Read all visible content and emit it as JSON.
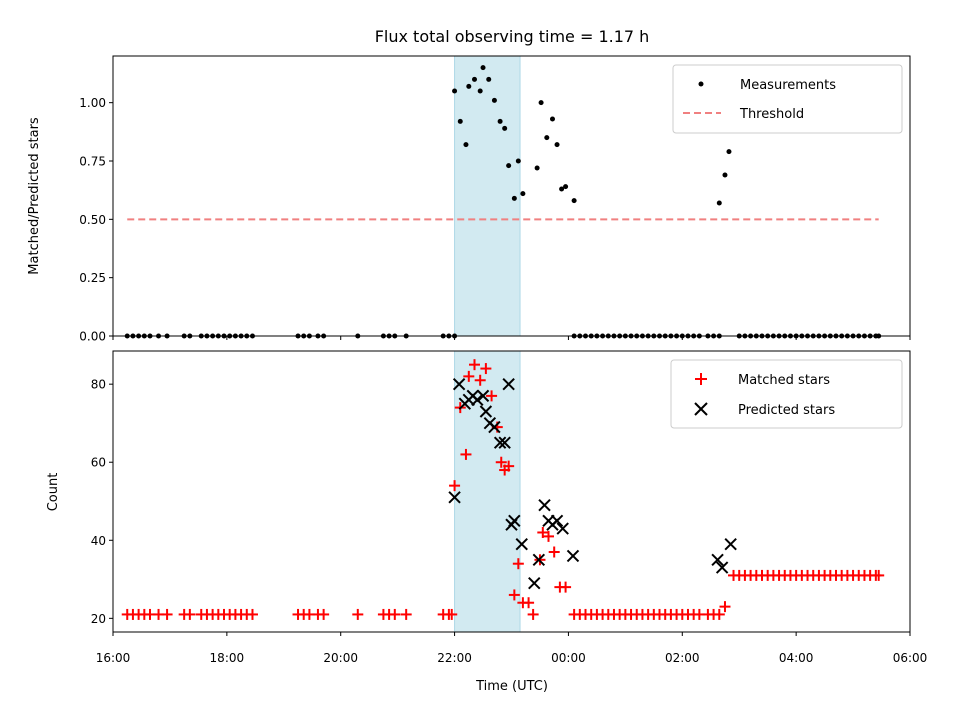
{
  "chart_data": [
    {
      "type": "scatter",
      "title": "Flux total observing time = 1.17 h",
      "xlabel": "",
      "ylabel": "Matched/Predicted stars",
      "xlim": [
        16.0,
        30.0
      ],
      "ylim": [
        0.0,
        1.2
      ],
      "yticks": [
        0.0,
        0.25,
        0.5,
        0.75,
        1.0
      ],
      "ytick_labels": [
        "0.00",
        "0.25",
        "0.50",
        "0.75",
        "1.00"
      ],
      "highlight_span": [
        22.0,
        23.15
      ],
      "threshold": {
        "name": "Threshold",
        "y": 0.5,
        "x_range": [
          16.25,
          29.45
        ],
        "color": "#f08080"
      },
      "series": [
        {
          "name": "Measurements",
          "color": "#000000",
          "points": [
            [
              16.25,
              0
            ],
            [
              16.35,
              0
            ],
            [
              16.45,
              0
            ],
            [
              16.55,
              0
            ],
            [
              16.65,
              0
            ],
            [
              16.8,
              0
            ],
            [
              16.95,
              0
            ],
            [
              17.25,
              0
            ],
            [
              17.35,
              0
            ],
            [
              17.55,
              0
            ],
            [
              17.65,
              0
            ],
            [
              17.75,
              0
            ],
            [
              17.85,
              0
            ],
            [
              17.95,
              0
            ],
            [
              18.05,
              0
            ],
            [
              18.15,
              0
            ],
            [
              18.25,
              0
            ],
            [
              18.35,
              0
            ],
            [
              18.45,
              0
            ],
            [
              19.25,
              0
            ],
            [
              19.35,
              0
            ],
            [
              19.45,
              0
            ],
            [
              19.6,
              0
            ],
            [
              19.7,
              0
            ],
            [
              20.3,
              0
            ],
            [
              20.75,
              0
            ],
            [
              20.85,
              0
            ],
            [
              20.95,
              0
            ],
            [
              21.15,
              0
            ],
            [
              21.8,
              0
            ],
            [
              21.9,
              0
            ],
            [
              22.0,
              0
            ],
            [
              22.0,
              1.05
            ],
            [
              22.1,
              0.92
            ],
            [
              22.2,
              0.82
            ],
            [
              22.25,
              1.07
            ],
            [
              22.35,
              1.1
            ],
            [
              22.45,
              1.05
            ],
            [
              22.5,
              1.15
            ],
            [
              22.6,
              1.1
            ],
            [
              22.7,
              1.01
            ],
            [
              22.8,
              0.92
            ],
            [
              22.88,
              0.89
            ],
            [
              22.95,
              0.73
            ],
            [
              23.05,
              0.59
            ],
            [
              23.12,
              0.75
            ],
            [
              23.2,
              0.61
            ],
            [
              23.45,
              0.72
            ],
            [
              23.52,
              1.0
            ],
            [
              23.62,
              0.85
            ],
            [
              23.72,
              0.93
            ],
            [
              23.8,
              0.82
            ],
            [
              23.88,
              0.63
            ],
            [
              23.95,
              0.64
            ],
            [
              24.1,
              0.58
            ],
            [
              24.1,
              0
            ],
            [
              24.2,
              0
            ],
            [
              24.3,
              0
            ],
            [
              24.4,
              0
            ],
            [
              24.5,
              0
            ],
            [
              24.6,
              0
            ],
            [
              24.7,
              0
            ],
            [
              24.8,
              0
            ],
            [
              24.9,
              0
            ],
            [
              25.0,
              0
            ],
            [
              25.1,
              0
            ],
            [
              25.2,
              0
            ],
            [
              25.3,
              0
            ],
            [
              25.4,
              0
            ],
            [
              25.5,
              0
            ],
            [
              25.6,
              0
            ],
            [
              25.7,
              0
            ],
            [
              25.8,
              0
            ],
            [
              25.9,
              0
            ],
            [
              26.0,
              0
            ],
            [
              26.1,
              0
            ],
            [
              26.2,
              0
            ],
            [
              26.3,
              0
            ],
            [
              26.45,
              0
            ],
            [
              26.55,
              0
            ],
            [
              26.65,
              0
            ],
            [
              26.65,
              0.57
            ],
            [
              26.75,
              0.69
            ],
            [
              26.82,
              0.79
            ],
            [
              27.0,
              0
            ],
            [
              27.1,
              0
            ],
            [
              27.2,
              0
            ],
            [
              27.3,
              0
            ],
            [
              27.4,
              0
            ],
            [
              27.5,
              0
            ],
            [
              27.6,
              0
            ],
            [
              27.7,
              0
            ],
            [
              27.8,
              0
            ],
            [
              27.9,
              0
            ],
            [
              28.0,
              0
            ],
            [
              28.1,
              0
            ],
            [
              28.2,
              0
            ],
            [
              28.3,
              0
            ],
            [
              28.4,
              0
            ],
            [
              28.5,
              0
            ],
            [
              28.6,
              0
            ],
            [
              28.7,
              0
            ],
            [
              28.8,
              0
            ],
            [
              28.9,
              0
            ],
            [
              29.0,
              0
            ],
            [
              29.1,
              0
            ],
            [
              29.2,
              0
            ],
            [
              29.3,
              0
            ],
            [
              29.4,
              0
            ],
            [
              29.45,
              0
            ]
          ]
        }
      ],
      "legend": {
        "location": "upper right",
        "entries": [
          "Measurements",
          "Threshold"
        ]
      }
    },
    {
      "type": "scatter",
      "title": "",
      "xlabel": "Time (UTC)",
      "ylabel": "Count",
      "xlim": [
        16.0,
        30.0
      ],
      "ylim": [
        16.5,
        88.5
      ],
      "yticks": [
        20,
        40,
        60,
        80
      ],
      "ytick_labels": [
        "20",
        "40",
        "60",
        "80"
      ],
      "xticks": [
        16,
        18,
        20,
        22,
        24,
        26,
        28,
        30
      ],
      "xtick_labels": [
        "16:00",
        "18:00",
        "20:00",
        "22:00",
        "00:00",
        "02:00",
        "04:00",
        "06:00"
      ],
      "highlight_span": [
        22.0,
        23.15
      ],
      "series": [
        {
          "name": "Matched stars",
          "marker": "plus",
          "color": "#ff0000",
          "points": [
            [
              16.25,
              21
            ],
            [
              16.35,
              21
            ],
            [
              16.45,
              21
            ],
            [
              16.55,
              21
            ],
            [
              16.65,
              21
            ],
            [
              16.8,
              21
            ],
            [
              16.95,
              21
            ],
            [
              17.25,
              21
            ],
            [
              17.35,
              21
            ],
            [
              17.55,
              21
            ],
            [
              17.65,
              21
            ],
            [
              17.75,
              21
            ],
            [
              17.85,
              21
            ],
            [
              17.95,
              21
            ],
            [
              18.05,
              21
            ],
            [
              18.15,
              21
            ],
            [
              18.25,
              21
            ],
            [
              18.35,
              21
            ],
            [
              18.45,
              21
            ],
            [
              19.25,
              21
            ],
            [
              19.35,
              21
            ],
            [
              19.45,
              21
            ],
            [
              19.6,
              21
            ],
            [
              19.7,
              21
            ],
            [
              20.3,
              21
            ],
            [
              20.75,
              21
            ],
            [
              20.85,
              21
            ],
            [
              20.95,
              21
            ],
            [
              21.15,
              21
            ],
            [
              21.8,
              21
            ],
            [
              21.9,
              21
            ],
            [
              21.95,
              21
            ],
            [
              22.0,
              54
            ],
            [
              22.1,
              74
            ],
            [
              22.2,
              62
            ],
            [
              22.25,
              82
            ],
            [
              22.35,
              85
            ],
            [
              22.45,
              81
            ],
            [
              22.55,
              84
            ],
            [
              22.65,
              77
            ],
            [
              22.75,
              69
            ],
            [
              22.82,
              60
            ],
            [
              22.88,
              58
            ],
            [
              22.95,
              59
            ],
            [
              23.05,
              26
            ],
            [
              23.12,
              34
            ],
            [
              23.2,
              24
            ],
            [
              23.3,
              24
            ],
            [
              23.38,
              21
            ],
            [
              23.5,
              35
            ],
            [
              23.55,
              42
            ],
            [
              23.65,
              41
            ],
            [
              23.75,
              37
            ],
            [
              23.85,
              28
            ],
            [
              23.95,
              28
            ],
            [
              24.1,
              21
            ],
            [
              24.2,
              21
            ],
            [
              24.3,
              21
            ],
            [
              24.4,
              21
            ],
            [
              24.5,
              21
            ],
            [
              24.6,
              21
            ],
            [
              24.7,
              21
            ],
            [
              24.8,
              21
            ],
            [
              24.9,
              21
            ],
            [
              25.0,
              21
            ],
            [
              25.1,
              21
            ],
            [
              25.2,
              21
            ],
            [
              25.3,
              21
            ],
            [
              25.4,
              21
            ],
            [
              25.5,
              21
            ],
            [
              25.6,
              21
            ],
            [
              25.7,
              21
            ],
            [
              25.8,
              21
            ],
            [
              25.9,
              21
            ],
            [
              26.0,
              21
            ],
            [
              26.1,
              21
            ],
            [
              26.2,
              21
            ],
            [
              26.3,
              21
            ],
            [
              26.45,
              21
            ],
            [
              26.55,
              21
            ],
            [
              26.65,
              21
            ],
            [
              26.75,
              23
            ],
            [
              26.9,
              31
            ],
            [
              27.0,
              31
            ],
            [
              27.1,
              31
            ],
            [
              27.2,
              31
            ],
            [
              27.3,
              31
            ],
            [
              27.4,
              31
            ],
            [
              27.5,
              31
            ],
            [
              27.6,
              31
            ],
            [
              27.7,
              31
            ],
            [
              27.8,
              31
            ],
            [
              27.9,
              31
            ],
            [
              28.0,
              31
            ],
            [
              28.1,
              31
            ],
            [
              28.2,
              31
            ],
            [
              28.3,
              31
            ],
            [
              28.4,
              31
            ],
            [
              28.5,
              31
            ],
            [
              28.6,
              31
            ],
            [
              28.7,
              31
            ],
            [
              28.8,
              31
            ],
            [
              28.9,
              31
            ],
            [
              29.0,
              31
            ],
            [
              29.1,
              31
            ],
            [
              29.2,
              31
            ],
            [
              29.3,
              31
            ],
            [
              29.4,
              31
            ],
            [
              29.45,
              31
            ]
          ]
        },
        {
          "name": "Predicted stars",
          "marker": "x",
          "color": "#000000",
          "points": [
            [
              22.0,
              51
            ],
            [
              22.08,
              80
            ],
            [
              22.18,
              75
            ],
            [
              22.25,
              76
            ],
            [
              22.32,
              77
            ],
            [
              22.4,
              76
            ],
            [
              22.5,
              77
            ],
            [
              22.55,
              73
            ],
            [
              22.62,
              70
            ],
            [
              22.7,
              69
            ],
            [
              22.8,
              65
            ],
            [
              22.88,
              65
            ],
            [
              22.95,
              80
            ],
            [
              23.0,
              44
            ],
            [
              23.05,
              45
            ],
            [
              23.18,
              39
            ],
            [
              23.4,
              29
            ],
            [
              23.48,
              35
            ],
            [
              23.58,
              49
            ],
            [
              23.65,
              45
            ],
            [
              23.72,
              44
            ],
            [
              23.8,
              45
            ],
            [
              23.9,
              43
            ],
            [
              24.08,
              36
            ],
            [
              26.62,
              35
            ],
            [
              26.7,
              33
            ],
            [
              26.85,
              39
            ]
          ]
        }
      ],
      "legend": {
        "location": "upper right",
        "entries": [
          "Matched stars",
          "Predicted stars"
        ]
      }
    }
  ],
  "colors": {
    "highlight_fill": "#add8e6",
    "threshold": "#f08080",
    "matched": "#ff0000",
    "predicted": "#000000",
    "measurements": "#000000"
  }
}
